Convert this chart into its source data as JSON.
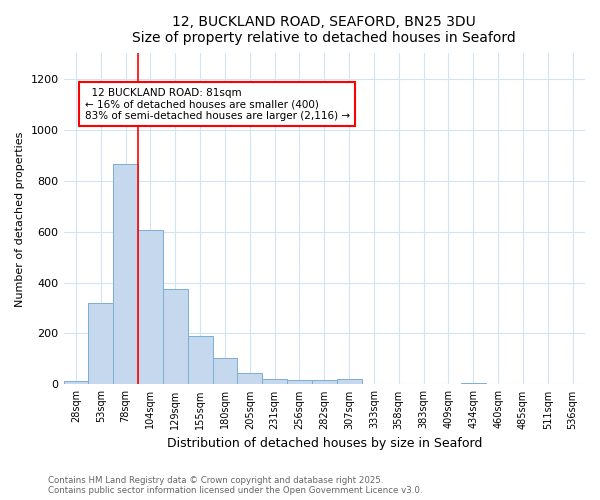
{
  "title_line1": "12, BUCKLAND ROAD, SEAFORD, BN25 3DU",
  "title_line2": "Size of property relative to detached houses in Seaford",
  "xlabel": "Distribution of detached houses by size in Seaford",
  "ylabel": "Number of detached properties",
  "bar_labels": [
    "28sqm",
    "53sqm",
    "78sqm",
    "104sqm",
    "129sqm",
    "155sqm",
    "180sqm",
    "205sqm",
    "231sqm",
    "256sqm",
    "282sqm",
    "307sqm",
    "333sqm",
    "358sqm",
    "383sqm",
    "409sqm",
    "434sqm",
    "460sqm",
    "485sqm",
    "511sqm",
    "536sqm"
  ],
  "bar_values": [
    15,
    320,
    865,
    605,
    375,
    190,
    103,
    44,
    23,
    18,
    18,
    20,
    3,
    0,
    0,
    0,
    5,
    0,
    0,
    0,
    0
  ],
  "bar_color": "#c5d8ed",
  "bar_edge_color": "#7bafd4",
  "ylim": [
    0,
    1300
  ],
  "yticks": [
    0,
    200,
    400,
    600,
    800,
    1000,
    1200
  ],
  "red_line_x": 2.5,
  "annotation_title": "12 BUCKLAND ROAD: 81sqm",
  "annotation_line2": "← 16% of detached houses are smaller (400)",
  "annotation_line3": "83% of semi-detached houses are larger (2,116) →",
  "footer_line1": "Contains HM Land Registry data © Crown copyright and database right 2025.",
  "footer_line2": "Contains public sector information licensed under the Open Government Licence v3.0.",
  "bg_color": "#ffffff",
  "plot_bg_color": "#ffffff",
  "grid_color": "#d0e4f5"
}
